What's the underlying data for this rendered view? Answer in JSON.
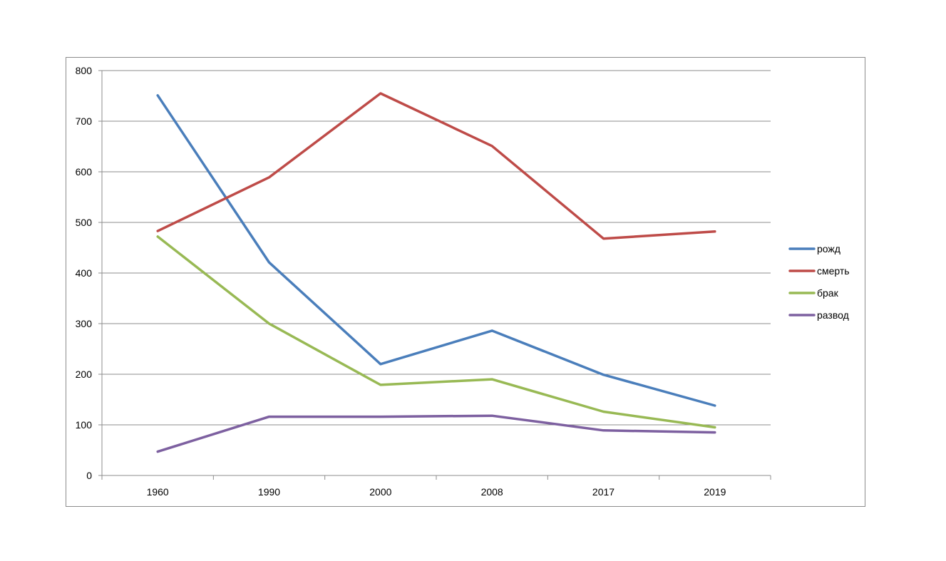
{
  "chart_data": {
    "type": "line",
    "title": "",
    "xlabel": "",
    "ylabel": "",
    "categories": [
      "1960",
      "1990",
      "2000",
      "2008",
      "2017",
      "2019"
    ],
    "ylim": [
      0,
      800
    ],
    "yticks": [
      0,
      100,
      200,
      300,
      400,
      500,
      600,
      700,
      800
    ],
    "grid": true,
    "legend_position": "right",
    "series": [
      {
        "name": "рожд",
        "color": "#4a7ebb",
        "values": [
          751,
          421,
          220,
          286,
          199,
          138
        ]
      },
      {
        "name": "смерть",
        "color": "#be4b48",
        "values": [
          483,
          589,
          755,
          651,
          468,
          482
        ]
      },
      {
        "name": "брак",
        "color": "#98b954",
        "values": [
          472,
          300,
          179,
          190,
          126,
          95
        ]
      },
      {
        "name": "развод",
        "color": "#7d60a0",
        "values": [
          47,
          116,
          116,
          118,
          89,
          85
        ]
      }
    ]
  }
}
